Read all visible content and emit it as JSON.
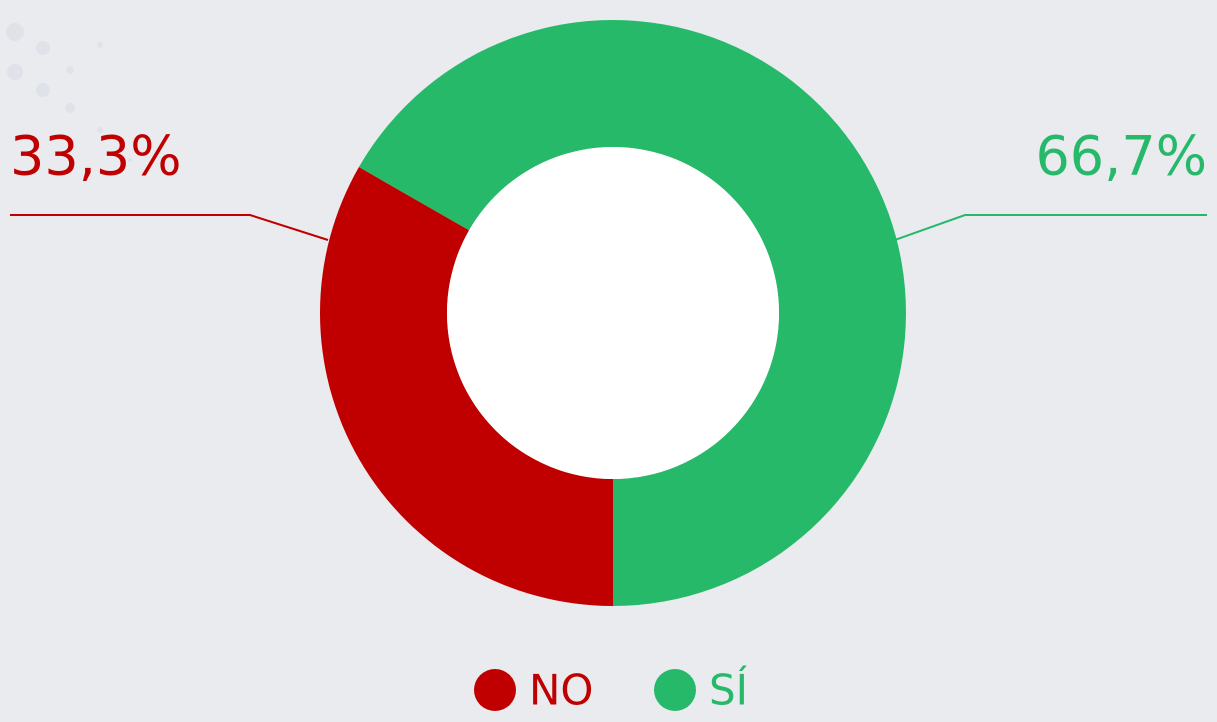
{
  "chart_data": {
    "type": "donut",
    "categories": [
      "NO",
      "SÍ"
    ],
    "values": [
      33.3,
      66.7
    ],
    "value_labels": [
      "33,3%",
      "66,7%"
    ],
    "colors": [
      "#c00000",
      "#27b96a"
    ],
    "legend": "bottom"
  }
}
